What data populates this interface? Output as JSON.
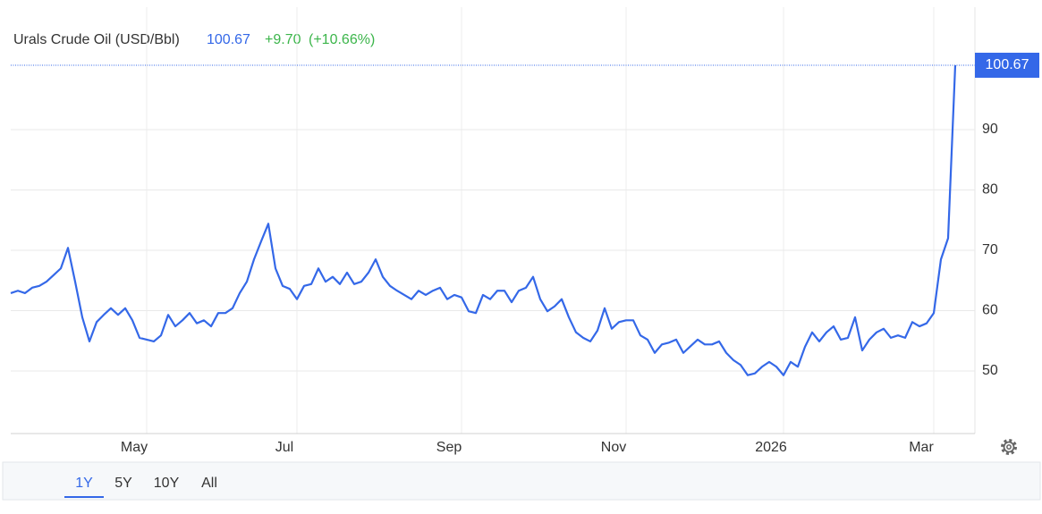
{
  "header": {
    "title": "Urals Crude Oil (USD/Bbl)",
    "change": "+9.70",
    "change_pct": "(+10.66%)"
  },
  "ranges": [
    "1Y",
    "5Y",
    "10Y",
    "All"
  ],
  "chart_data": {
    "type": "line",
    "categories": [
      null,
      null,
      null,
      null,
      null,
      null,
      null,
      null,
      null,
      null,
      null,
      null,
      null,
      null,
      null,
      null,
      null,
      null,
      null,
      "May",
      null,
      null,
      null,
      null,
      null,
      null,
      null,
      null,
      null,
      null,
      null,
      null,
      null,
      null,
      null,
      null,
      null,
      null,
      null,
      null,
      "Jul",
      null,
      null,
      null,
      null,
      null,
      null,
      null,
      null,
      null,
      null,
      null,
      null,
      null,
      null,
      null,
      null,
      null,
      null,
      null,
      null,
      null,
      null,
      "Sep",
      null,
      null,
      null,
      null,
      null,
      null,
      null,
      null,
      null,
      null,
      null,
      null,
      null,
      null,
      null,
      null,
      null,
      null,
      null,
      null,
      null,
      null,
      "Nov",
      null,
      null,
      null,
      null,
      null,
      null,
      null,
      null,
      null,
      null,
      null,
      null,
      null,
      null,
      null,
      null,
      null,
      null,
      null,
      null,
      null,
      "2026",
      null,
      null,
      null,
      null,
      null,
      null,
      null,
      null,
      null,
      null,
      null,
      null,
      null,
      null,
      null,
      null,
      null,
      null,
      null,
      null,
      "Mar",
      null,
      null,
      null
    ],
    "series": [
      {
        "name": "Urals Crude Oil",
        "color": "#3468e8",
        "values": [
          62.9,
          63.3,
          62.9,
          63.8,
          64.1,
          64.8,
          65.9,
          67.0,
          70.4,
          64.8,
          58.9,
          54.9,
          58.1,
          59.3,
          60.4,
          59.3,
          60.4,
          58.4,
          55.5,
          55.2,
          54.9,
          55.9,
          59.3,
          57.4,
          58.4,
          59.6,
          57.9,
          58.4,
          57.4,
          59.6,
          59.6,
          60.4,
          62.9,
          64.8,
          68.5,
          71.5,
          74.4,
          67.0,
          64.1,
          63.6,
          61.9,
          64.1,
          64.4,
          67.0,
          64.8,
          65.6,
          64.4,
          66.3,
          64.4,
          64.8,
          66.3,
          68.5,
          65.6,
          64.1,
          63.3,
          62.6,
          61.9,
          63.3,
          62.6,
          63.3,
          63.8,
          61.9,
          62.6,
          62.2,
          59.9,
          59.6,
          62.6,
          61.9,
          63.3,
          63.3,
          61.4,
          63.3,
          63.8,
          65.6,
          61.9,
          59.9,
          60.7,
          61.9,
          58.9,
          56.4,
          55.5,
          54.9,
          56.7,
          60.4,
          57.0,
          58.1,
          58.4,
          58.4,
          55.9,
          55.2,
          53.0,
          54.4,
          54.7,
          55.2,
          53.0,
          54.1,
          55.2,
          54.4,
          54.4,
          54.9,
          53.0,
          51.8,
          51.0,
          49.3,
          49.6,
          50.7,
          51.5,
          50.7,
          49.3,
          51.5,
          50.7,
          54.0,
          56.4,
          54.9,
          56.4,
          57.4,
          55.2,
          55.5,
          58.9,
          53.4,
          55.2,
          56.4,
          57.0,
          55.5,
          55.9,
          55.5,
          58.1,
          57.4,
          57.9,
          59.6,
          68.5,
          72.0,
          100.67
        ]
      }
    ],
    "ylim": [
      40,
      110
    ],
    "yticks": [
      50,
      60,
      70,
      80,
      90
    ],
    "grid": true
  }
}
